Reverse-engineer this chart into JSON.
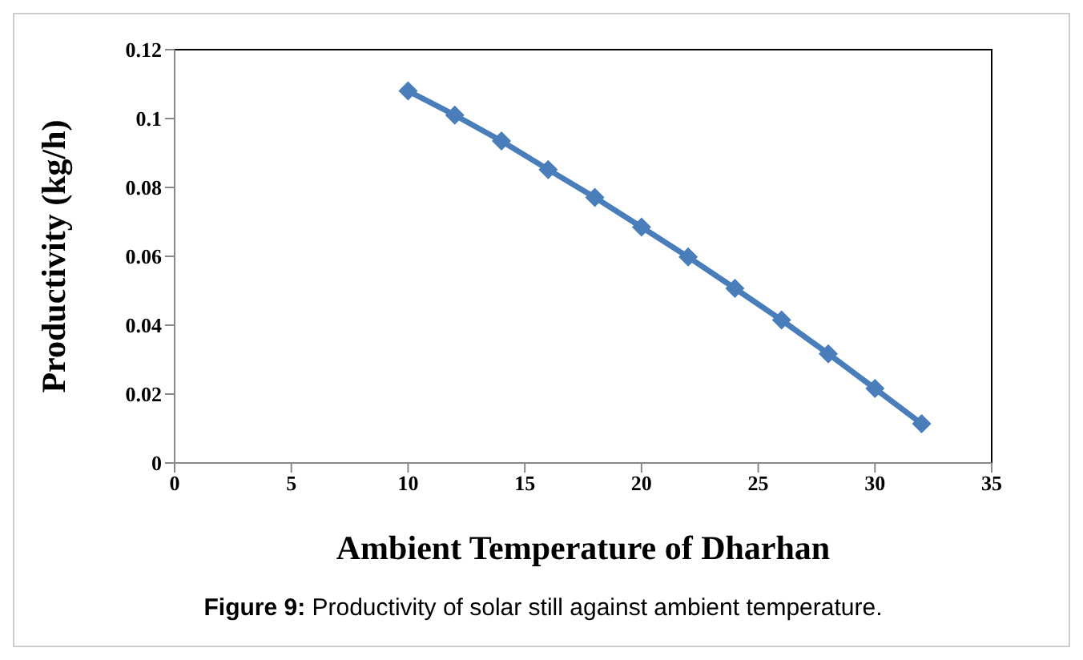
{
  "chart_data": {
    "type": "line",
    "xlabel": "Ambient  Temperature  of Dharhan",
    "ylabel": "Productivity  (kg/h)",
    "annotations": [
      "Figure 9: Productivity of solar still against ambient temperature."
    ],
    "x": [
      10,
      12,
      14,
      16,
      18,
      20,
      22,
      24,
      26,
      28,
      30,
      32
    ],
    "series": [
      {
        "color": "#4a7ebb",
        "values": [
          0.108,
          0.101,
          0.0935,
          0.0852,
          0.0771,
          0.0685,
          0.0598,
          0.0507,
          0.0415,
          0.0317,
          0.0216,
          0.0114
        ]
      }
    ],
    "xlim": [
      0,
      35
    ],
    "xticks": [
      0,
      5,
      10,
      15,
      20,
      25,
      30,
      35
    ],
    "ylim": [
      0,
      0.12
    ],
    "yticks": [
      0,
      0.02,
      0.04,
      0.06,
      0.08,
      0.1,
      0.12
    ],
    "grid": false,
    "legend": false,
    "marker": "diamond",
    "line_style": "solid"
  }
}
